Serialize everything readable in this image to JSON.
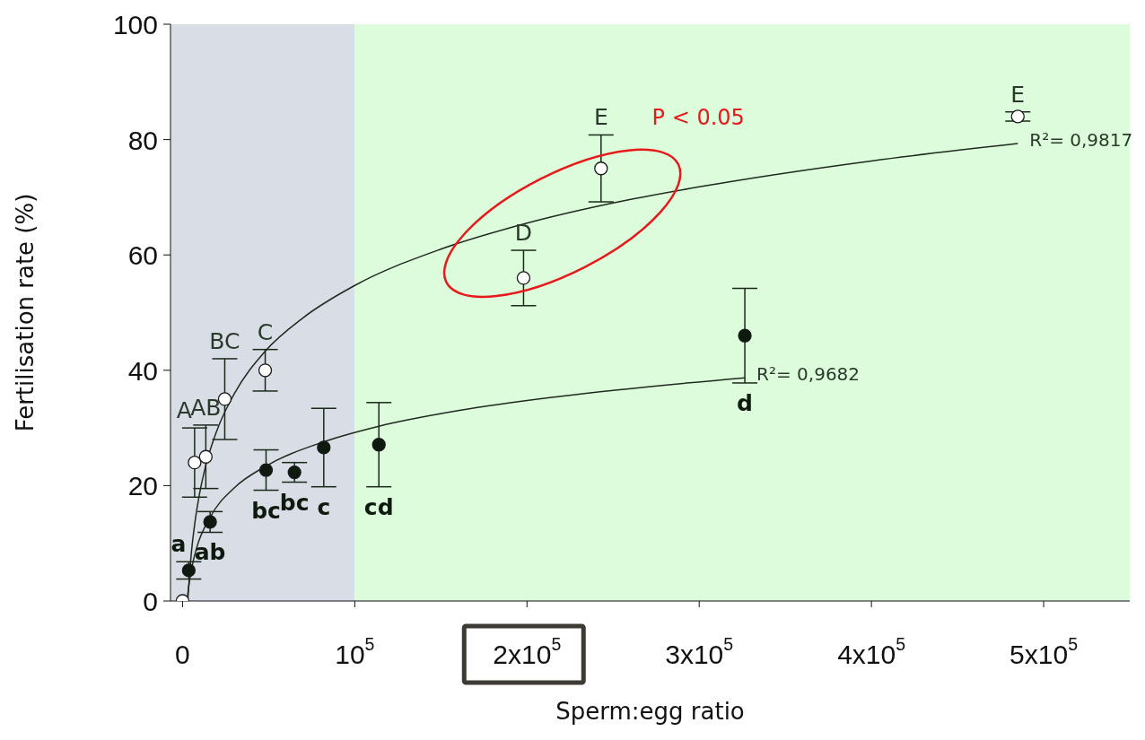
{
  "chart_data": {
    "type": "scatter",
    "xlabel": "Sperm:egg ratio",
    "ylabel": "Fertilisation rate (%)",
    "xlim": [
      -7000,
      550000
    ],
    "xticks": [
      {
        "value": 0,
        "label": "0"
      },
      {
        "value": 100000,
        "label": "10$^{5}$"
      },
      {
        "value": 200000,
        "label": "2x10$^{5}$"
      },
      {
        "value": 300000,
        "label": "3x10$^{5}$"
      },
      {
        "value": 400000,
        "label": "4x10$^{5}$"
      },
      {
        "value": 500000,
        "label": "5x10$^{5}$"
      }
    ],
    "ylim": [
      0,
      100
    ],
    "yticks": [
      0,
      20,
      40,
      60,
      80,
      100
    ],
    "marker": "circle",
    "series": [
      {
        "color": "#ffffff",
        "x": [
          0,
          7000,
          13500,
          24500,
          48000,
          198000,
          243000,
          485000
        ],
        "values": [
          0,
          24,
          25,
          35,
          40,
          56,
          75,
          84
        ],
        "errors": [
          null,
          6,
          5.5,
          7,
          3.6,
          4.8,
          5.8,
          0.8
        ]
      },
      {
        "color": "#0d1a0d",
        "x": [
          3600,
          16000,
          48500,
          65000,
          82000,
          114000,
          326500
        ],
        "values": [
          5.3,
          13.7,
          22.7,
          22.3,
          26.6,
          27.1,
          46
        ],
        "errors": [
          1.5,
          1.8,
          3.5,
          1.7,
          6.8,
          7.3,
          8.2
        ]
      },
      {
        "type": "line",
        "marker": "none",
        "color": "#1f2a1f",
        "x": [
          3000,
          5000,
          7000,
          10000,
          13500,
          20000,
          30000,
          48000,
          70000,
          100000,
          150000,
          200000,
          250000,
          300000,
          400000,
          485000
        ],
        "values": [
          0,
          8,
          13.2,
          18.8,
          23.5,
          29.6,
          35.9,
          43.3,
          49.1,
          54.7,
          61,
          65.5,
          69,
          71.8,
          76.3,
          79.3
        ]
      },
      {
        "type": "line",
        "marker": "none",
        "color": "#1f2a1f",
        "x": [
          2600,
          3600,
          5000,
          8000,
          16000,
          30000,
          48500,
          82000,
          114000,
          160000,
          220000,
          326500
        ],
        "values": [
          0,
          2.6,
          5.2,
          9,
          14.5,
          19.6,
          23.4,
          27.6,
          30.3,
          33,
          35.5,
          38.7
        ]
      }
    ],
    "bands": [
      {
        "axis": "x",
        "from": -7000,
        "to": 100000,
        "color": "#d9dde6"
      },
      {
        "axis": "x",
        "from": 100000,
        "to": 550000,
        "color": "#dcfcdc"
      }
    ],
    "annotations": [
      {
        "text": "A",
        "x": 7000,
        "y": 24
      },
      {
        "text": "AB",
        "x": 13500,
        "y": 25
      },
      {
        "text": "BC",
        "x": 24500,
        "y": 35
      },
      {
        "text": "C",
        "x": 48000,
        "y": 40
      },
      {
        "text": "D",
        "x": 198000,
        "y": 56
      },
      {
        "text": "E",
        "x": 243000,
        "y": 75
      },
      {
        "text": "E",
        "x": 485000,
        "y": 84
      },
      {
        "text": "a",
        "x": 3600,
        "y": 5.3
      },
      {
        "text": "ab",
        "x": 16000,
        "y": 13.7
      },
      {
        "text": "bc",
        "x": 48500,
        "y": 22.7
      },
      {
        "text": "bc",
        "x": 65000,
        "y": 22.3
      },
      {
        "text": "c",
        "x": 82000,
        "y": 26.6
      },
      {
        "text": "cd",
        "x": 114000,
        "y": 27.1
      },
      {
        "text": "d",
        "x": 326500,
        "y": 46
      },
      {
        "text": "R²= 0,9817",
        "x": 485000,
        "y": 79.3
      },
      {
        "text": "R²= 0,9682",
        "x": 326500,
        "y": 38.7
      },
      "P < 0.05"
    ]
  }
}
